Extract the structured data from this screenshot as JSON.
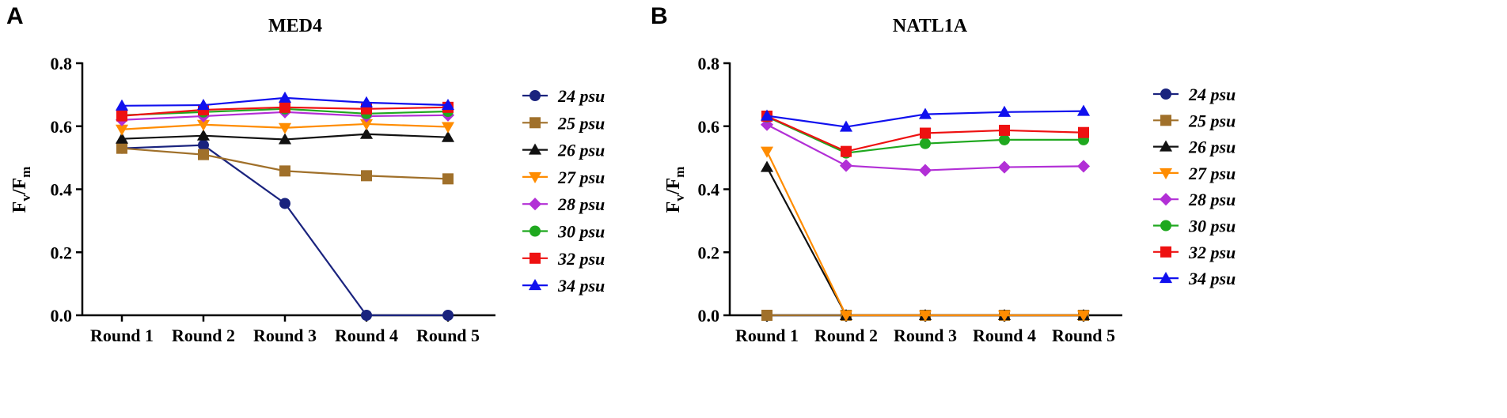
{
  "chart_data": [
    {
      "panel": "A",
      "title": "MED4",
      "type": "line",
      "ylabel": "Fv/Fm",
      "ylabel_main": "F",
      "ylabel_sub1": "v",
      "ylabel_slash": "/F",
      "ylabel_sub2": "m",
      "xlabel": "",
      "ylim": [
        0,
        0.8
      ],
      "yticks": [
        "0.0",
        "0.2",
        "0.4",
        "0.6",
        "0.8"
      ],
      "categories": [
        "Round 1",
        "Round 2",
        "Round 3",
        "Round 4",
        "Round 5"
      ],
      "series": [
        {
          "name": "24 psu",
          "color": "#1a237e",
          "marker": "circle",
          "values": [
            0.53,
            0.54,
            0.355,
            0.0,
            0.0
          ]
        },
        {
          "name": "25 psu",
          "color": "#a0702a",
          "marker": "square",
          "values": [
            0.53,
            0.51,
            0.458,
            0.443,
            0.433
          ]
        },
        {
          "name": "26 psu",
          "color": "#111111",
          "marker": "triangle-up",
          "values": [
            0.56,
            0.57,
            0.558,
            0.575,
            0.565
          ]
        },
        {
          "name": "27 psu",
          "color": "#ff8c00",
          "marker": "triangle-down",
          "values": [
            0.59,
            0.605,
            0.595,
            0.607,
            0.598
          ]
        },
        {
          "name": "28 psu",
          "color": "#b22fd6",
          "marker": "diamond",
          "values": [
            0.62,
            0.632,
            0.645,
            0.632,
            0.635
          ]
        },
        {
          "name": "30 psu",
          "color": "#1fa81f",
          "marker": "circle",
          "values": [
            0.635,
            0.645,
            0.655,
            0.64,
            0.647
          ]
        },
        {
          "name": "32 psu",
          "color": "#ee1111",
          "marker": "square",
          "values": [
            0.633,
            0.652,
            0.66,
            0.655,
            0.66
          ]
        },
        {
          "name": "34 psu",
          "color": "#1010ee",
          "marker": "triangle-up",
          "values": [
            0.665,
            0.667,
            0.69,
            0.675,
            0.667
          ]
        }
      ]
    },
    {
      "panel": "B",
      "title": "NATL1A",
      "type": "line",
      "ylabel": "Fv/Fm",
      "ylabel_main": "F",
      "ylabel_sub1": "v",
      "ylabel_slash": "/F",
      "ylabel_sub2": "m",
      "xlabel": "",
      "ylim": [
        0,
        0.8
      ],
      "yticks": [
        "0.0",
        "0.2",
        "0.4",
        "0.6",
        "0.8"
      ],
      "categories": [
        "Round 1",
        "Round 2",
        "Round 3",
        "Round 4",
        "Round 5"
      ],
      "series": [
        {
          "name": "24 psu",
          "color": "#1a237e",
          "marker": "circle",
          "values": [
            0.0,
            0.0,
            0.0,
            0.0,
            0.0
          ]
        },
        {
          "name": "25 psu",
          "color": "#a0702a",
          "marker": "square",
          "values": [
            0.0,
            0.0,
            0.0,
            0.0,
            0.0
          ]
        },
        {
          "name": "26 psu",
          "color": "#111111",
          "marker": "triangle-up",
          "values": [
            0.47,
            0.0,
            0.0,
            0.0,
            0.0
          ]
        },
        {
          "name": "27 psu",
          "color": "#ff8c00",
          "marker": "triangle-down",
          "values": [
            0.52,
            0.0,
            0.0,
            0.0,
            0.0
          ]
        },
        {
          "name": "28 psu",
          "color": "#b22fd6",
          "marker": "diamond",
          "values": [
            0.605,
            0.475,
            0.46,
            0.47,
            0.473
          ]
        },
        {
          "name": "30 psu",
          "color": "#1fa81f",
          "marker": "circle",
          "values": [
            0.63,
            0.515,
            0.545,
            0.557,
            0.557
          ]
        },
        {
          "name": "32 psu",
          "color": "#ee1111",
          "marker": "square",
          "values": [
            0.632,
            0.52,
            0.578,
            0.587,
            0.58
          ]
        },
        {
          "name": "34 psu",
          "color": "#1010ee",
          "marker": "triangle-up",
          "values": [
            0.633,
            0.598,
            0.638,
            0.645,
            0.648
          ]
        }
      ]
    }
  ]
}
